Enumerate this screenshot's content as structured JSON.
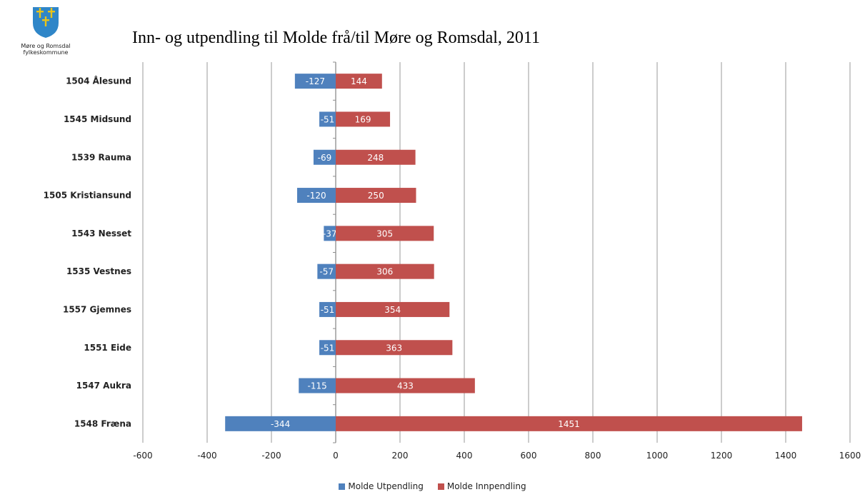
{
  "logo": {
    "org_line1": "Møre og Romsdal",
    "org_line2": "fylkeskommune"
  },
  "colors": {
    "utpendling": "#4f81bd",
    "innpendling": "#c0504d",
    "grid": "#b0b0b0",
    "logo_blue": "#2f86c8",
    "logo_gold": "#e8c31a"
  },
  "chart_data": {
    "type": "bar",
    "orientation": "horizontal",
    "stacked": true,
    "title": "Inn- og utpendling til Molde frå/til Møre og Romsdal, 2011",
    "categories": [
      "1504 Ålesund",
      "1545 Midsund",
      "1539 Rauma",
      "1505 Kristiansund",
      "1543 Nesset",
      "1535 Vestnes",
      "1557 Gjemnes",
      "1551 Eide",
      "1547 Aukra",
      "1548 Fræna"
    ],
    "series": [
      {
        "name": "Molde Utpendling",
        "values": [
          -127,
          -51,
          -69,
          -120,
          -37,
          -57,
          -51,
          -51,
          -115,
          -344
        ]
      },
      {
        "name": "Molde Innpendling",
        "values": [
          144,
          169,
          248,
          250,
          305,
          306,
          354,
          363,
          433,
          1451
        ]
      }
    ],
    "xlim": [
      -600,
      1600
    ],
    "xticks": [
      -600,
      -400,
      -200,
      0,
      200,
      400,
      600,
      800,
      1000,
      1200,
      1400,
      1600
    ],
    "grid": "vertical",
    "legend": "bottom"
  }
}
